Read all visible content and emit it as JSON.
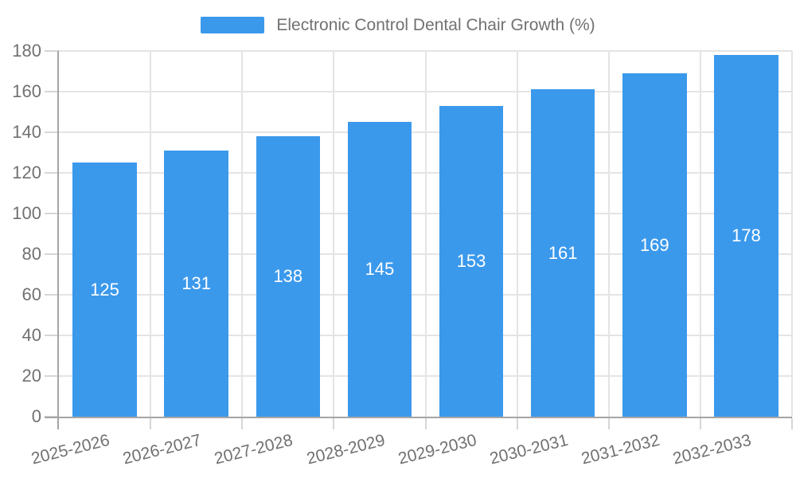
{
  "chart_data": {
    "type": "bar",
    "title": "",
    "legend_label": "Electronic Control Dental Chair Growth (%)",
    "legend_position": "top-center",
    "categories": [
      "2025-2026",
      "2026-2027",
      "2027-2028",
      "2028-2029",
      "2029-2030",
      "2030-2031",
      "2031-2032",
      "2032-2033"
    ],
    "series": [
      {
        "name": "Electronic Control Dental Chair Growth (%)",
        "values": [
          125,
          131,
          138,
          145,
          153,
          161,
          169,
          178
        ]
      }
    ],
    "xlabel": "",
    "ylabel": "",
    "ylim": [
      0,
      180
    ],
    "y_ticks": [
      0,
      20,
      40,
      60,
      80,
      100,
      120,
      140,
      160,
      180
    ],
    "grid": true,
    "value_labels_position": "inside-center",
    "colors": {
      "bar": "#3b99ec",
      "value_label": "#ffffff",
      "axis_line": "#a5a5a5",
      "gridline": "#e4e4e4",
      "tick": "#d6d6d6",
      "text": "#717171",
      "background": "#ffffff"
    }
  }
}
